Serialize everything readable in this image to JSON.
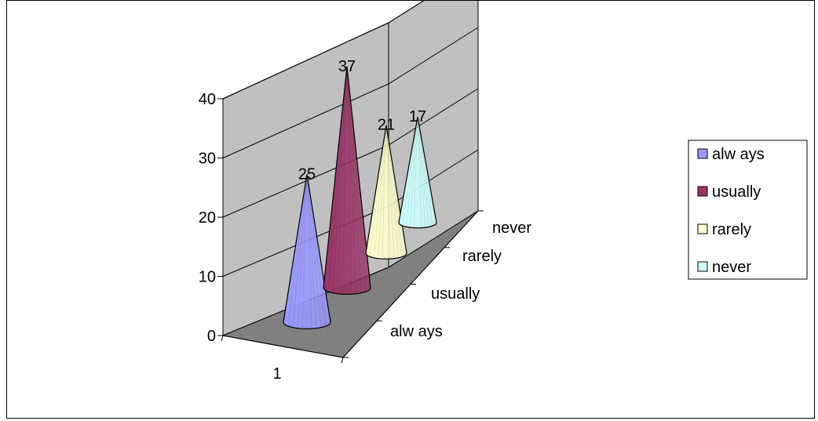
{
  "chart_data": {
    "type": "bar",
    "shape": "cone",
    "view": "3d",
    "categories": [
      "1"
    ],
    "series": [
      {
        "name": "alw ays",
        "values": [
          25
        ],
        "color": "#9999ff"
      },
      {
        "name": "usually",
        "values": [
          37
        ],
        "color": "#993366"
      },
      {
        "name": "rarely",
        "values": [
          21
        ],
        "color": "#ffffcc"
      },
      {
        "name": "never",
        "values": [
          17
        ],
        "color": "#ccffff"
      }
    ],
    "data_labels": [
      "25",
      "37",
      "21",
      "17"
    ],
    "y_ticks": [
      "0",
      "10",
      "20",
      "30",
      "40"
    ],
    "depth_labels": [
      "alw ays",
      "usually",
      "rarely",
      "never"
    ],
    "ylim": [
      0,
      40
    ],
    "grid": true,
    "legend": "right",
    "title": "",
    "xlabel": "",
    "ylabel": "",
    "colors": {
      "wall": "#c0c0c0",
      "floor": "#808080",
      "gridline": "#000000"
    }
  }
}
